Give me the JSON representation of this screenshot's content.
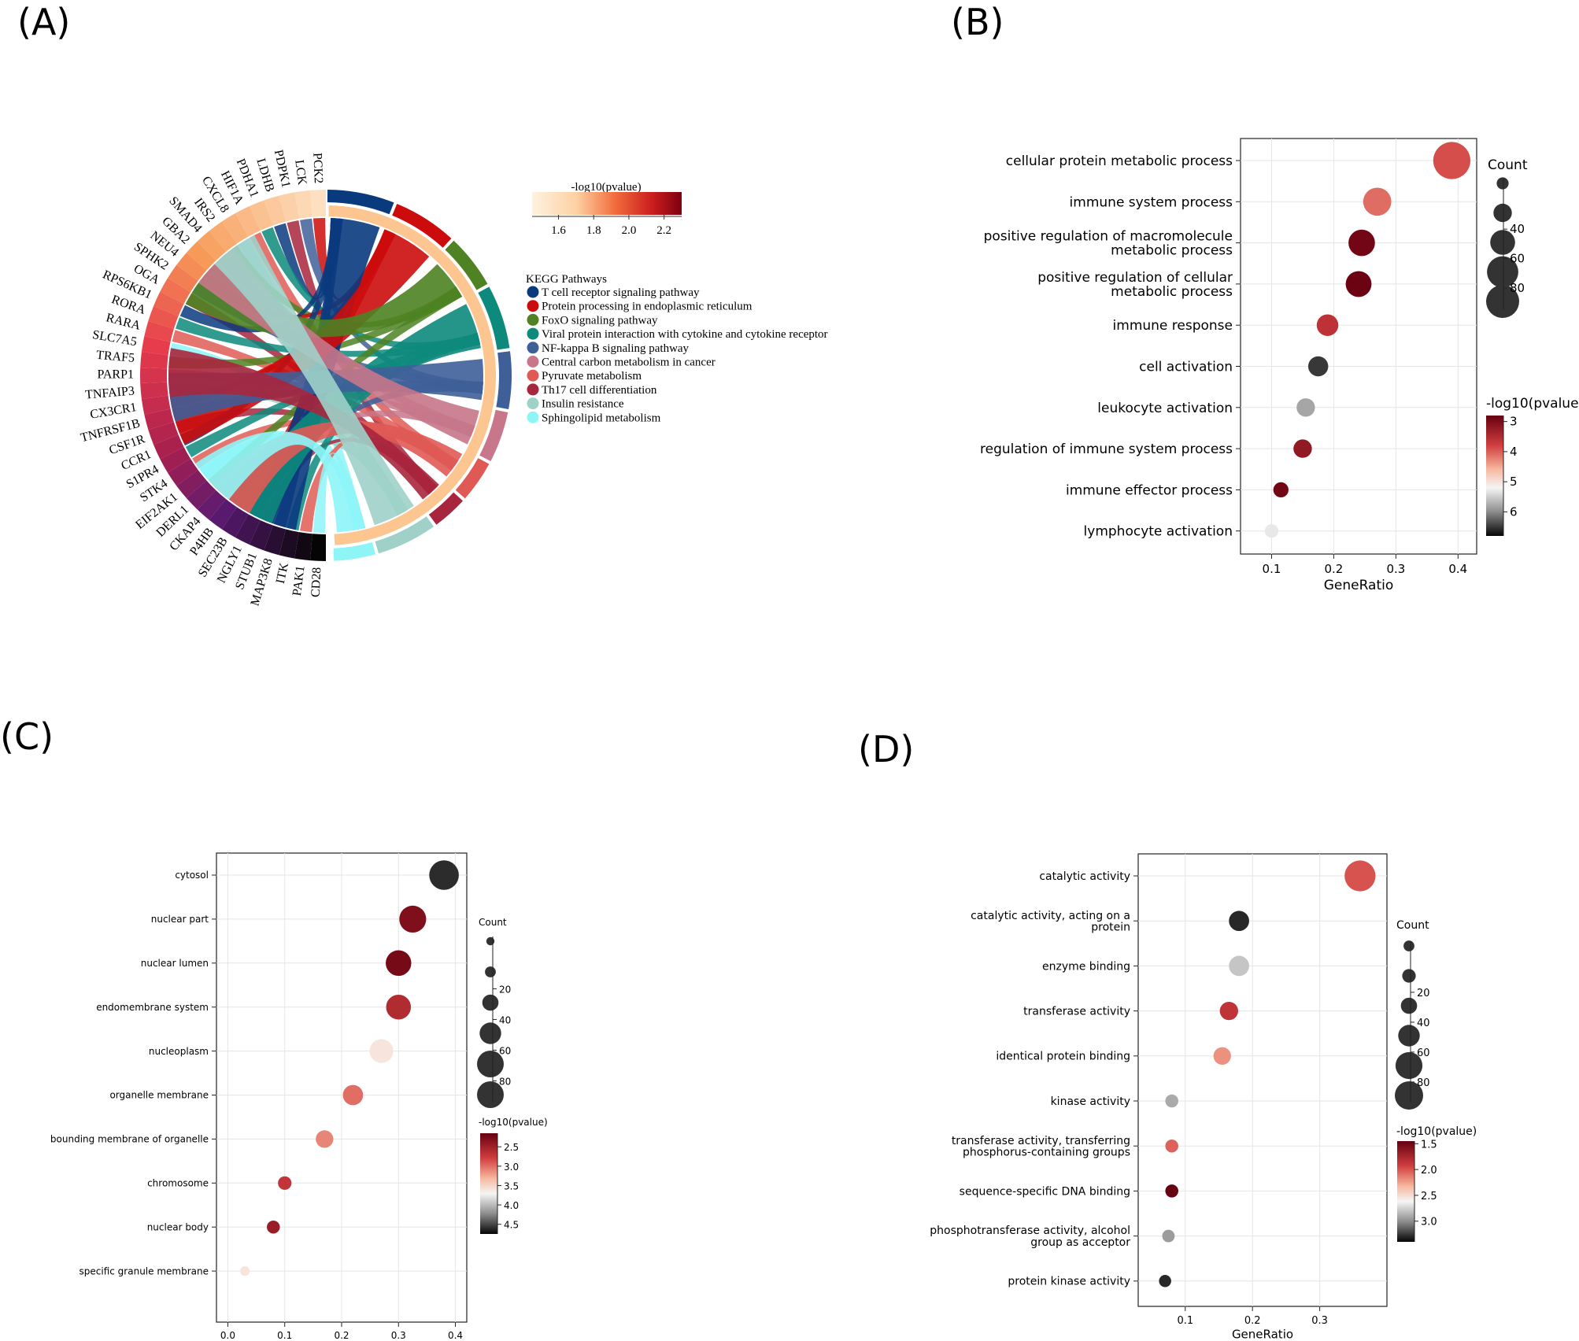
{
  "panels": [
    "(A)",
    "(B)",
    "(C)",
    "(D)"
  ],
  "chart_data": [
    {
      "type": "chord",
      "panel": "(A)",
      "genes": [
        "PCK2",
        "LCK",
        "PDPK1",
        "LDHB",
        "PDHA1",
        "HIF1A",
        "CXCL8",
        "IRS2",
        "SMAD4",
        "GBA2",
        "NEU4",
        "SPHK2",
        "OGA",
        "RPS6KB1",
        "RORA",
        "RARA",
        "SLC7A5",
        "TRAF5",
        "PARP1",
        "TNFAIP3",
        "CX3CR1",
        "TNFRSF1B",
        "CSF1R",
        "CCR1",
        "S1PR4",
        "STK4",
        "EIF2AK1",
        "DERL1",
        "CKAP4",
        "P4HB",
        "SEC23B",
        "NGLY1",
        "STUB1",
        "MAP3K8",
        "ITK",
        "PAK1",
        "CD28"
      ],
      "colorbar": {
        "title": "-log10(pvalue)",
        "ticks": [
          "1.6",
          "1.8",
          "2.0",
          "2.2"
        ],
        "range": [
          1.45,
          2.3
        ]
      },
      "legend_title": "KEGG Pathways",
      "pathways": [
        {
          "name": "T cell receptor signaling pathway",
          "color": "#0a3a7e"
        },
        {
          "name": "Protein processing in endoplasmic reticulum",
          "color": "#cc0c0c"
        },
        {
          "name": "FoxO signaling pathway",
          "color": "#4e8222"
        },
        {
          "name": "Viral protein interaction with cytokine and cytokine receptor",
          "color": "#0d8a7c"
        },
        {
          "name": "NF-kappa B signaling pathway",
          "color": "#3f5f99"
        },
        {
          "name": "Central carbon metabolism in cancer",
          "color": "#c77789"
        },
        {
          "name": "Pyruvate metabolism",
          "color": "#e05a55"
        },
        {
          "name": "Th17 cell differentiation",
          "color": "#a8263d"
        },
        {
          "name": "Insulin resistance",
          "color": "#9fd1c9"
        },
        {
          "name": "Sphingolipid metabolism",
          "color": "#8ef5f7"
        }
      ]
    },
    {
      "type": "scatter",
      "panel": "(B)",
      "xlabel": "GeneRatio",
      "xlim": [
        0.05,
        0.43
      ],
      "xticks": [
        "0.1",
        "0.2",
        "0.3",
        "0.4"
      ],
      "terms": [
        {
          "label": [
            "cellular protein metabolic process"
          ],
          "x": 0.39,
          "count": 98,
          "p": 3.9
        },
        {
          "label": [
            "immune system process"
          ],
          "x": 0.27,
          "count": 70,
          "p": 4.1
        },
        {
          "label": [
            "positive regulation of macromolecule",
            "metabolic process"
          ],
          "x": 0.245,
          "count": 65,
          "p": 2.9
        },
        {
          "label": [
            "positive regulation of cellular",
            "metabolic process"
          ],
          "x": 0.24,
          "count": 63,
          "p": 2.85
        },
        {
          "label": [
            "immune response"
          ],
          "x": 0.19,
          "count": 50,
          "p": 3.6
        },
        {
          "label": [
            "cell activation"
          ],
          "x": 0.175,
          "count": 45,
          "p": 6.5
        },
        {
          "label": [
            "leukocyte activation"
          ],
          "x": 0.155,
          "count": 40,
          "p": 5.8
        },
        {
          "label": [
            "regulation of immune system process"
          ],
          "x": 0.15,
          "count": 40,
          "p": 3.2
        },
        {
          "label": [
            "immune effector process"
          ],
          "x": 0.115,
          "count": 30,
          "p": 2.9
        },
        {
          "label": [
            "lymphocyte activation"
          ],
          "x": 0.1,
          "count": 25,
          "p": 5.3
        }
      ],
      "size_legend": {
        "title": "Count",
        "ticks": [
          "40",
          "60",
          "80"
        ],
        "values": [
          20,
          40,
          60,
          80,
          100
        ]
      },
      "color_legend": {
        "title": "-log10(pvalue)",
        "ticks": [
          "3",
          "4",
          "5",
          "6"
        ],
        "range": [
          2.8,
          6.8
        ]
      }
    },
    {
      "type": "scatter",
      "panel": "(C)",
      "xlabel": "GeneRatio",
      "xlim": [
        -0.02,
        0.42
      ],
      "xticks": [
        "0.0",
        "0.1",
        "0.2",
        "0.3",
        "0.4"
      ],
      "terms": [
        {
          "label": [
            "cytosol"
          ],
          "x": 0.38,
          "count": 90,
          "p": 4.6
        },
        {
          "label": [
            "nuclear part"
          ],
          "x": 0.325,
          "count": 80,
          "p": 2.3
        },
        {
          "label": [
            "nuclear lumen"
          ],
          "x": 0.3,
          "count": 75,
          "p": 2.25
        },
        {
          "label": [
            "endomembrane system"
          ],
          "x": 0.3,
          "count": 72,
          "p": 2.6
        },
        {
          "label": [
            "nucleoplasm"
          ],
          "x": 0.27,
          "count": 68,
          "p": 3.6
        },
        {
          "label": [
            "organelle membrane"
          ],
          "x": 0.22,
          "count": 55,
          "p": 3.0
        },
        {
          "label": [
            "bounding membrane of organelle"
          ],
          "x": 0.17,
          "count": 45,
          "p": 3.1
        },
        {
          "label": [
            "chromosome"
          ],
          "x": 0.1,
          "count": 30,
          "p": 2.7
        },
        {
          "label": [
            "nuclear body"
          ],
          "x": 0.08,
          "count": 28,
          "p": 2.45
        },
        {
          "label": [
            "specific granule membrane"
          ],
          "x": 0.03,
          "count": 15,
          "p": 3.6
        }
      ],
      "size_legend": {
        "title": "Count",
        "ticks": [
          "20",
          "40",
          "60",
          "80"
        ],
        "values": [
          10,
          20,
          40,
          60,
          80,
          100
        ]
      },
      "color_legend": {
        "title": "-log10(pvalue)",
        "ticks": [
          "2.5",
          "3.0",
          "3.5",
          "4.0",
          "4.5"
        ],
        "range": [
          2.15,
          4.75
        ]
      }
    },
    {
      "type": "scatter",
      "panel": "(D)",
      "xlabel": "GeneRatio",
      "xlim": [
        0.03,
        0.4
      ],
      "xticks": [
        "0.1",
        "0.2",
        "0.3"
      ],
      "terms": [
        {
          "label": [
            "catalytic activity"
          ],
          "x": 0.36,
          "count": 95,
          "p": 2.0
        },
        {
          "label": [
            "catalytic activity, acting on a",
            "protein"
          ],
          "x": 0.18,
          "count": 55,
          "p": 3.3
        },
        {
          "label": [
            "enzyme binding"
          ],
          "x": 0.18,
          "count": 55,
          "p": 2.8
        },
        {
          "label": [
            "transferase activity"
          ],
          "x": 0.165,
          "count": 48,
          "p": 1.85
        },
        {
          "label": [
            "identical protein binding"
          ],
          "x": 0.155,
          "count": 45,
          "p": 2.2
        },
        {
          "label": [
            "kinase activity"
          ],
          "x": 0.08,
          "count": 28,
          "p": 2.9
        },
        {
          "label": [
            "transferase activity, transferring",
            "phosphorus-containing groups"
          ],
          "x": 0.08,
          "count": 28,
          "p": 2.05
        },
        {
          "label": [
            "sequence-specific DNA binding"
          ],
          "x": 0.08,
          "count": 28,
          "p": 1.45
        },
        {
          "label": [
            "phosphotransferase activity, alcohol",
            "group as acceptor"
          ],
          "x": 0.075,
          "count": 26,
          "p": 2.95
        },
        {
          "label": [
            "protein kinase activity"
          ],
          "x": 0.07,
          "count": 25,
          "p": 3.3
        }
      ],
      "size_legend": {
        "title": "Count",
        "ticks": [
          "20",
          "40",
          "60",
          "80"
        ],
        "values": [
          20,
          30,
          40,
          60,
          80,
          100
        ]
      },
      "color_legend": {
        "title": "-log10(pvalue)",
        "ticks": [
          "1.5",
          "2.0",
          "2.5",
          "3.0"
        ],
        "range": [
          1.45,
          3.4
        ]
      }
    }
  ]
}
